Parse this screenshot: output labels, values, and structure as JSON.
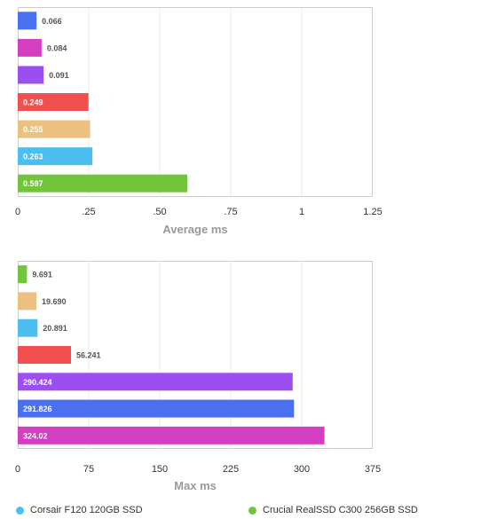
{
  "chart_data": [
    {
      "type": "bar",
      "orientation": "horizontal",
      "xlabel": "Average ms",
      "xlim": [
        0,
        1.25
      ],
      "tick_labels": [
        "0",
        ".25",
        ".50",
        ".75",
        "1",
        "1.25"
      ],
      "tick_values": [
        0,
        0.25,
        0.5,
        0.75,
        1,
        1.25
      ],
      "bars": [
        {
          "value": 0.066,
          "label": "0.066",
          "color": "#4a6ff0"
        },
        {
          "value": 0.084,
          "label": "0.084",
          "color": "#d43fc1"
        },
        {
          "value": 0.091,
          "label": "0.091",
          "color": "#9b4ff0"
        },
        {
          "value": 0.249,
          "label": "0.249",
          "color": "#f05050"
        },
        {
          "value": 0.255,
          "label": "0.255",
          "color": "#ecc080"
        },
        {
          "value": 0.263,
          "label": "0.263",
          "color": "#4dbef0"
        },
        {
          "value": 0.597,
          "label": "0.597",
          "color": "#72c43c"
        }
      ]
    },
    {
      "type": "bar",
      "orientation": "horizontal",
      "xlabel": "Max ms",
      "xlim": [
        0,
        375
      ],
      "tick_labels": [
        "0",
        "75",
        "150",
        "225",
        "300",
        "375"
      ],
      "tick_values": [
        0,
        75,
        150,
        225,
        300,
        375
      ],
      "bars": [
        {
          "value": 9.691,
          "label": "9.691",
          "color": "#72c43c"
        },
        {
          "value": 19.69,
          "label": "19.690",
          "color": "#ecc080"
        },
        {
          "value": 20.891,
          "label": "20.891",
          "color": "#4dbef0"
        },
        {
          "value": 56.241,
          "label": "56.241",
          "color": "#f05050"
        },
        {
          "value": 290.424,
          "label": "290.424",
          "color": "#9b4ff0"
        },
        {
          "value": 291.826,
          "label": "291.826",
          "color": "#4a6ff0"
        },
        {
          "value": 324.02,
          "label": "324.02",
          "color": "#d43fc1"
        }
      ]
    }
  ],
  "legend": {
    "items": [
      {
        "name": "Corsair F120 120GB SSD",
        "color": "#4dbef0"
      },
      {
        "name": "Crucial RealSSD C300 256GB SSD",
        "color": "#72c43c"
      }
    ]
  }
}
